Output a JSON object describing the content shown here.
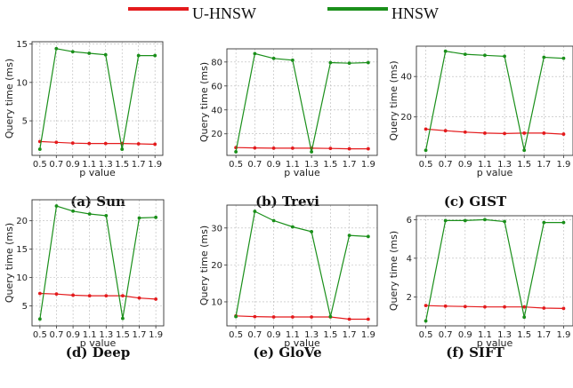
{
  "legend": [
    {
      "label": "U-HNSW",
      "color": "#e41a1c"
    },
    {
      "label": "HNSW",
      "color": "#1a8f1a"
    }
  ],
  "chart_data": [
    {
      "type": "line",
      "caption": "(a) Sun",
      "xlabel": "p value",
      "ylabel": "Query time (ms)",
      "x": [
        0.5,
        0.7,
        0.9,
        1.1,
        1.3,
        1.5,
        1.7,
        1.9
      ],
      "xticks": [
        "0.5",
        "0.7",
        "0.9",
        "1.1",
        "1.3",
        "1.5",
        "1.7",
        "1.9"
      ],
      "ylim": [
        0.5,
        15.3
      ],
      "yticks": [
        5,
        10,
        15
      ],
      "series": [
        {
          "name": "U-HNSW",
          "color": "#e41a1c",
          "values": [
            2.3,
            2.2,
            2.1,
            2.05,
            2.05,
            2.05,
            2.0,
            1.95
          ]
        },
        {
          "name": "HNSW",
          "color": "#1a8f1a",
          "values": [
            1.3,
            14.4,
            14.0,
            13.8,
            13.6,
            1.3,
            13.5,
            13.5
          ]
        }
      ]
    },
    {
      "type": "line",
      "caption": "(b) Trevi",
      "xlabel": "p value",
      "ylabel": "Query time (ms)",
      "x": [
        0.5,
        0.7,
        0.9,
        1.1,
        1.3,
        1.5,
        1.7,
        1.9
      ],
      "xticks": [
        "0.5",
        "0.7",
        "0.9",
        "1.1",
        "1.3",
        "1.5",
        "1.7",
        "1.9"
      ],
      "ylim": [
        2,
        91
      ],
      "yticks": [
        20,
        40,
        60,
        80
      ],
      "series": [
        {
          "name": "U-HNSW",
          "color": "#e41a1c",
          "values": [
            8.5,
            8.2,
            8.0,
            8.0,
            8.0,
            7.8,
            7.5,
            7.5
          ]
        },
        {
          "name": "HNSW",
          "color": "#1a8f1a",
          "values": [
            5,
            87,
            83,
            81.5,
            5,
            79.5,
            79,
            79.5
          ]
        }
      ]
    },
    {
      "type": "line",
      "caption": "(c) GIST",
      "xlabel": "p value",
      "ylabel": "Query time (ms)",
      "x": [
        0.5,
        0.7,
        0.9,
        1.1,
        1.3,
        1.5,
        1.7,
        1.9
      ],
      "xticks": [
        "0.5",
        "0.7",
        "0.9",
        "1.1",
        "1.3",
        "1.5",
        "1.7",
        "1.9"
      ],
      "ylim": [
        1,
        55
      ],
      "yticks": [
        20,
        40
      ],
      "series": [
        {
          "name": "U-HNSW",
          "color": "#e41a1c",
          "values": [
            14,
            13.2,
            12.5,
            12.0,
            11.8,
            12.0,
            12.0,
            11.5
          ]
        },
        {
          "name": "HNSW",
          "color": "#1a8f1a",
          "values": [
            3.5,
            52.5,
            51,
            50.5,
            50,
            3.5,
            49.5,
            49
          ]
        }
      ]
    },
    {
      "type": "line",
      "caption": "(d) Deep",
      "xlabel": "p value",
      "ylabel": "Query time (ms)",
      "x": [
        0.5,
        0.7,
        0.9,
        1.1,
        1.3,
        1.5,
        1.7,
        1.9
      ],
      "xticks": [
        "0.5",
        "0.7",
        "0.9",
        "1.1",
        "1.3",
        "1.5",
        "1.7",
        "1.9"
      ],
      "ylim": [
        1.5,
        23.7
      ],
      "yticks": [
        5,
        10,
        15,
        20
      ],
      "series": [
        {
          "name": "U-HNSW",
          "color": "#e41a1c",
          "values": [
            7.2,
            7.1,
            6.9,
            6.8,
            6.8,
            6.8,
            6.4,
            6.2
          ]
        },
        {
          "name": "HNSW",
          "color": "#1a8f1a",
          "values": [
            2.7,
            22.6,
            21.7,
            21.2,
            20.9,
            2.8,
            20.5,
            20.6
          ]
        }
      ]
    },
    {
      "type": "line",
      "caption": "(e) GloVe",
      "xlabel": "p value",
      "ylabel": "Query time (ms)",
      "x": [
        0.5,
        0.7,
        0.9,
        1.1,
        1.3,
        1.5,
        1.7,
        1.9
      ],
      "xticks": [
        "0.5",
        "0.7",
        "0.9",
        "1.1",
        "1.3",
        "1.5",
        "1.7",
        "1.9"
      ],
      "ylim": [
        3.5,
        36.2
      ],
      "yticks": [
        10,
        20,
        30
      ],
      "series": [
        {
          "name": "U-HNSW",
          "color": "#e41a1c",
          "values": [
            6.2,
            6.0,
            5.9,
            5.9,
            5.9,
            5.9,
            5.3,
            5.3
          ]
        },
        {
          "name": "HNSW",
          "color": "#1a8f1a",
          "values": [
            6,
            34.5,
            32,
            30.3,
            29,
            6,
            28,
            27.7
          ]
        }
      ]
    },
    {
      "type": "line",
      "caption": "(f) SIFT",
      "xlabel": "p value",
      "ylabel": "Query time (ms)",
      "x": [
        0.5,
        0.7,
        0.9,
        1.1,
        1.3,
        1.5,
        1.7,
        1.9
      ],
      "xticks": [
        "0.5",
        "0.7",
        "0.9",
        "1.1",
        "1.3",
        "1.5",
        "1.7",
        "1.9"
      ],
      "ylim": [
        0.5,
        6.2
      ],
      "yticks": [
        2,
        4,
        6
      ],
      "series": [
        {
          "name": "U-HNSW",
          "color": "#e41a1c",
          "values": [
            1.55,
            1.52,
            1.5,
            1.48,
            1.48,
            1.48,
            1.42,
            1.4
          ]
        },
        {
          "name": "HNSW",
          "color": "#1a8f1a",
          "values": [
            0.75,
            5.95,
            5.95,
            6.0,
            5.9,
            0.95,
            5.85,
            5.85
          ]
        }
      ]
    }
  ]
}
